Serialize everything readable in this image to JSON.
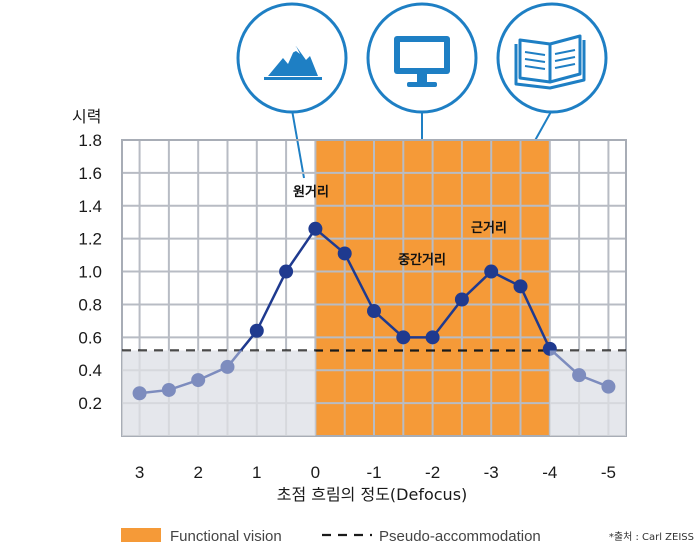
{
  "chart_data": {
    "type": "line",
    "ylabel": "시력",
    "xlabel": "초점 흐림의 정도(Defocus)",
    "x_ticks": [
      "3",
      "2",
      "1",
      "0",
      "-1",
      "-2",
      "-3",
      "-4",
      "-5"
    ],
    "y_ticks": [
      "1.8",
      "1.6",
      "1.4",
      "1.2",
      "1.0",
      "0.8",
      "0.6",
      "0.4",
      "0.2"
    ],
    "xlim": [
      3.3,
      -5.3
    ],
    "ylim": [
      0.0,
      1.8
    ],
    "grid": true,
    "series": [
      {
        "x": [
          3,
          2.5,
          2,
          1.5,
          1,
          0.5,
          0,
          -0.5,
          -1,
          -1.5,
          -2,
          -2.5,
          -3,
          -3.5,
          -4,
          -4.5,
          -5
        ],
        "y": [
          0.26,
          0.28,
          0.34,
          0.42,
          0.64,
          1.0,
          1.26,
          1.11,
          0.76,
          0.6,
          0.6,
          0.83,
          1.0,
          0.91,
          0.53,
          0.37,
          0.3
        ],
        "color": "#1f3a8f"
      }
    ],
    "functional_vision_range": [
      0,
      -4
    ],
    "pseudo_accommodation_level": 0.52,
    "colors": {
      "functional_vision": "#f59a38",
      "pseudo_band": "#d3d6de",
      "line": "#1f3a8f",
      "grid": "#b8bcc4",
      "callout": "#1e7fc4"
    },
    "zone_labels": [
      "원거리",
      "중간거리",
      "근거리"
    ],
    "zone_icons": [
      "mountain-icon",
      "monitor-icon",
      "book-icon"
    ],
    "legend": {
      "functional_vision": "Functional vision",
      "pseudo_accommodation": "Pseudo-accommodation"
    },
    "source": "*출처 : Carl ZEISS"
  }
}
